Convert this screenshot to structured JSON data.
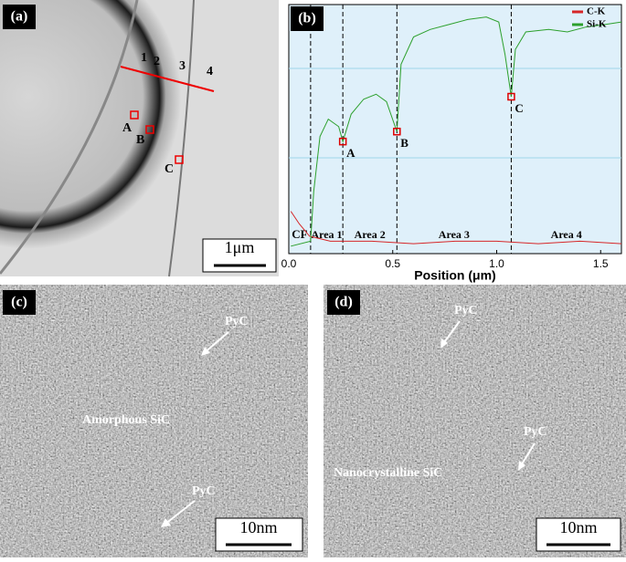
{
  "chart_data": {
    "type": "line",
    "x_label": "Position (μm)",
    "xlim": [
      0,
      1.6
    ],
    "ylim": [
      0,
      100
    ],
    "xticks": [
      {
        "value": 0,
        "label": "0.0"
      },
      {
        "value": 0.5,
        "label": "0.5"
      },
      {
        "value": 1,
        "label": "1.0"
      },
      {
        "value": 1.5,
        "label": "1.5"
      }
    ],
    "legend": "upper right",
    "series": [
      {
        "name": "C-K",
        "color": "#d62728",
        "x": [
          0.01,
          0.05,
          0.1,
          0.2,
          0.4,
          0.6,
          0.8,
          1.0,
          1.2,
          1.4,
          1.6
        ],
        "values": [
          17,
          12,
          7,
          5,
          5,
          4,
          5,
          5,
          4,
          5,
          4
        ]
      },
      {
        "name": "Si-K",
        "color": "#2ca02c",
        "x": [
          0.01,
          0.105,
          0.12,
          0.15,
          0.19,
          0.24,
          0.26,
          0.3,
          0.36,
          0.42,
          0.47,
          0.52,
          0.54,
          0.6,
          0.68,
          0.77,
          0.86,
          0.95,
          1.01,
          1.04,
          1.07,
          1.09,
          1.14,
          1.25,
          1.34,
          1.43,
          1.52,
          1.6
        ],
        "values": [
          3,
          5,
          25,
          47,
          54,
          51,
          45,
          56,
          62,
          64,
          61,
          49,
          76,
          87,
          90,
          92,
          94,
          95,
          93,
          80,
          63,
          82,
          89,
          90,
          89,
          91,
          92,
          93
        ]
      }
    ],
    "markers": [
      {
        "label": "A",
        "x": 0.26,
        "y": 45
      },
      {
        "label": "B",
        "x": 0.52,
        "y": 49
      },
      {
        "label": "C",
        "x": 1.07,
        "y": 63
      }
    ],
    "area_boundaries": [
      0.105,
      0.26,
      0.52,
      1.07
    ],
    "area_labels": [
      "CF",
      "Area 1",
      "Area 2",
      "Area 3",
      "Area 4"
    ]
  },
  "panels": {
    "a": {
      "label": "(a)",
      "layers": [
        "1",
        "2",
        "3",
        "4"
      ],
      "points": [
        "A",
        "B",
        "C"
      ],
      "scale_bar": "1μm"
    },
    "b": {
      "label": "(b)"
    },
    "c": {
      "label": "(c)",
      "annotations": [
        "PyC",
        "Amorphous SiC",
        "PyC"
      ],
      "scale_bar": "10nm"
    },
    "d": {
      "label": "(d)",
      "annotations": [
        "PyC",
        "PyC",
        "Nanocrystalline SiC"
      ],
      "scale_bar": "10nm"
    }
  }
}
